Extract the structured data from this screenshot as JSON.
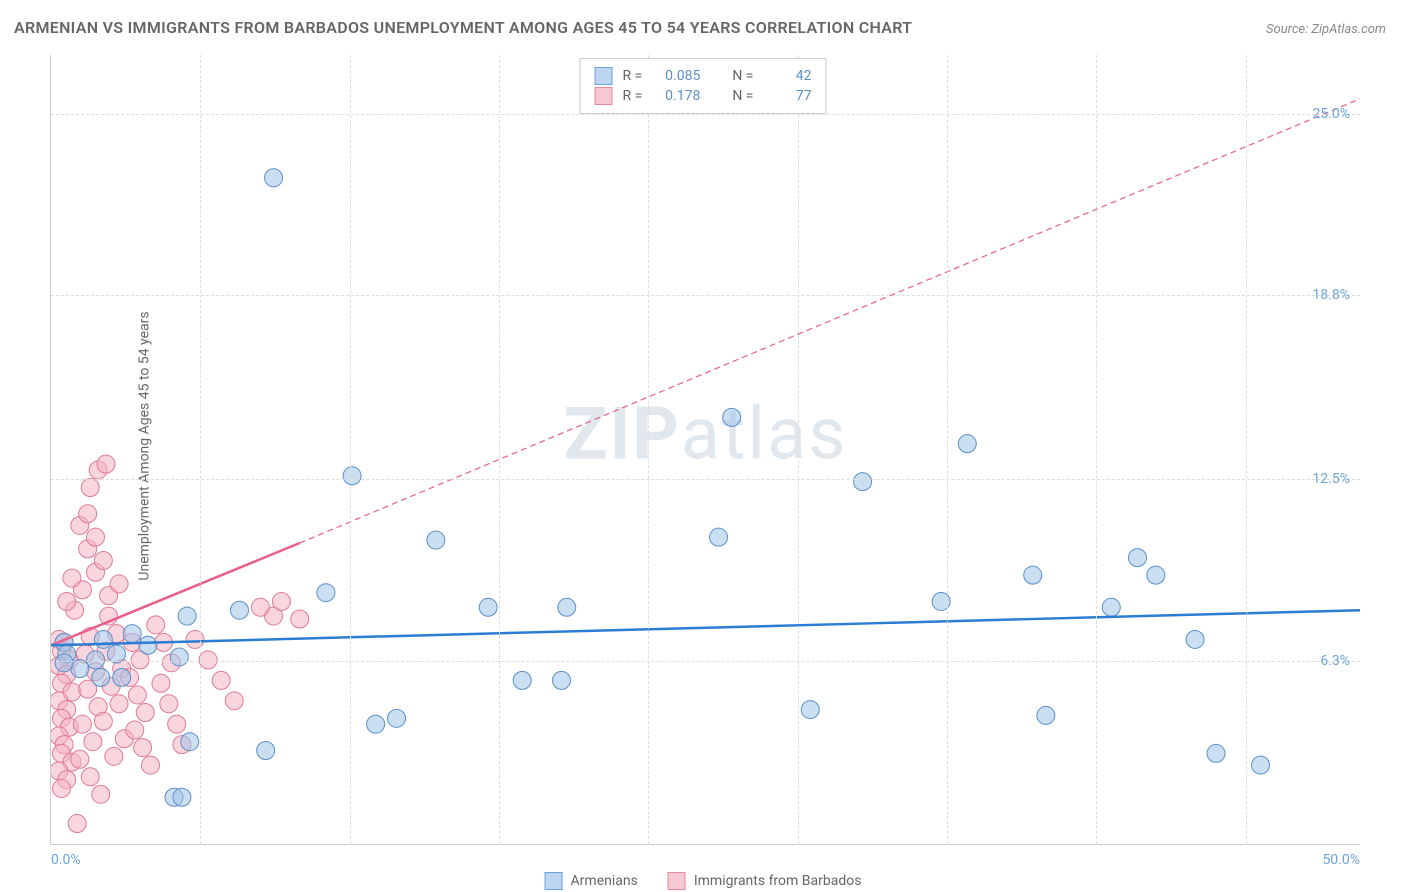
{
  "title": "ARMENIAN VS IMMIGRANTS FROM BARBADOS UNEMPLOYMENT AMONG AGES 45 TO 54 YEARS CORRELATION CHART",
  "source": "Source: ZipAtlas.com",
  "y_axis_label": "Unemployment Among Ages 45 to 54 years",
  "watermark_bold": "ZIP",
  "watermark_rest": "atlas",
  "chart": {
    "type": "scatter",
    "xlim": [
      0,
      50
    ],
    "ylim": [
      0,
      27
    ],
    "x_ticks": [
      0,
      50
    ],
    "x_tick_labels": [
      "0.0%",
      "50.0%"
    ],
    "y_ticks": [
      6.3,
      12.5,
      18.8,
      25.0
    ],
    "y_tick_labels": [
      "6.3%",
      "12.5%",
      "18.8%",
      "25.0%"
    ],
    "v_grid_positions": [
      5.7,
      11.4,
      17.1,
      22.8,
      28.5,
      34.2,
      39.9,
      45.6
    ],
    "h_grid_positions": [
      6.3,
      12.5,
      18.8,
      25.0
    ],
    "background_color": "#ffffff",
    "grid_color": "#dddddd",
    "marker_radius": 9,
    "marker_opacity": 0.55,
    "colors": {
      "blue_fill": "#9ec5e8",
      "blue_stroke": "#5a8fc9",
      "pink_fill": "#f4b2c2",
      "pink_stroke": "#e07a95",
      "blue_line": "#2b7cd3",
      "pink_line": "#e85f88"
    },
    "correlation_legend": [
      {
        "swatch": "blue",
        "r_label": "R =",
        "r_value": "0.085",
        "n_label": "N =",
        "n_value": "42"
      },
      {
        "swatch": "pink",
        "r_label": "R =",
        "r_value": "0.178",
        "n_label": "N =",
        "n_value": "77"
      }
    ],
    "series_legend": [
      {
        "swatch": "blue",
        "label": "Armenians"
      },
      {
        "swatch": "pink",
        "label": "Immigrants from Barbados"
      }
    ],
    "regression_lines": {
      "blue": {
        "x1": 0,
        "y1": 6.8,
        "x2": 50,
        "y2": 8.0,
        "width": 2.5,
        "dash": "none"
      },
      "pink_solid": {
        "x1": 0,
        "y1": 6.8,
        "x2": 9.5,
        "y2": 10.3,
        "width": 2.5,
        "dash": "none"
      },
      "pink_dashed": {
        "x1": 9.5,
        "y1": 10.3,
        "x2": 50,
        "y2": 25.5,
        "width": 1.2,
        "dash": "6 4"
      }
    },
    "series": {
      "armenians": [
        [
          8.5,
          22.8
        ],
        [
          26,
          14.6
        ],
        [
          35,
          13.7
        ],
        [
          31,
          12.4
        ],
        [
          11.5,
          12.6
        ],
        [
          14.7,
          10.4
        ],
        [
          25.5,
          10.5
        ],
        [
          10.5,
          8.6
        ],
        [
          16.7,
          8.1
        ],
        [
          19.7,
          8.1
        ],
        [
          34,
          8.3
        ],
        [
          41.5,
          9.8
        ],
        [
          37.5,
          9.2
        ],
        [
          42.2,
          9.2
        ],
        [
          40.5,
          8.1
        ],
        [
          43.7,
          7.0
        ],
        [
          38,
          4.4
        ],
        [
          44.5,
          3.1
        ],
        [
          46.2,
          2.7
        ],
        [
          29,
          4.6
        ],
        [
          18,
          5.6
        ],
        [
          19.5,
          5.6
        ],
        [
          13.2,
          4.3
        ],
        [
          12.4,
          4.1
        ],
        [
          8.2,
          3.2
        ],
        [
          4.7,
          1.6
        ],
        [
          7.2,
          8.0
        ],
        [
          5.0,
          1.6
        ],
        [
          3.7,
          6.8
        ],
        [
          4.9,
          6.4
        ],
        [
          5.3,
          3.5
        ],
        [
          2.0,
          7.0
        ],
        [
          3.1,
          7.2
        ],
        [
          0.5,
          6.9
        ],
        [
          1.9,
          5.7
        ],
        [
          1.1,
          6.0
        ],
        [
          2.7,
          5.7
        ],
        [
          5.2,
          7.8
        ],
        [
          2.5,
          6.5
        ],
        [
          0.6,
          6.5
        ],
        [
          1.7,
          6.3
        ],
        [
          0.5,
          6.2
        ]
      ],
      "barbados": [
        [
          0.3,
          7.0
        ],
        [
          0.5,
          6.9
        ],
        [
          0.4,
          6.6
        ],
        [
          0.7,
          6.3
        ],
        [
          0.3,
          6.1
        ],
        [
          0.6,
          5.8
        ],
        [
          0.4,
          5.5
        ],
        [
          0.8,
          5.2
        ],
        [
          0.3,
          4.9
        ],
        [
          0.6,
          4.6
        ],
        [
          0.4,
          4.3
        ],
        [
          0.7,
          4.0
        ],
        [
          0.3,
          3.7
        ],
        [
          0.5,
          3.4
        ],
        [
          0.4,
          3.1
        ],
        [
          0.8,
          2.8
        ],
        [
          0.3,
          2.5
        ],
        [
          0.6,
          2.2
        ],
        [
          0.4,
          1.9
        ],
        [
          1.0,
          0.7
        ],
        [
          1.5,
          7.1
        ],
        [
          1.3,
          6.5
        ],
        [
          1.7,
          5.9
        ],
        [
          1.4,
          5.3
        ],
        [
          1.8,
          4.7
        ],
        [
          1.2,
          4.1
        ],
        [
          1.6,
          3.5
        ],
        [
          1.1,
          2.9
        ],
        [
          1.5,
          2.3
        ],
        [
          1.9,
          1.7
        ],
        [
          2.2,
          7.8
        ],
        [
          2.5,
          7.2
        ],
        [
          2.1,
          6.6
        ],
        [
          2.7,
          6.0
        ],
        [
          2.3,
          5.4
        ],
        [
          2.6,
          4.8
        ],
        [
          2.0,
          4.2
        ],
        [
          2.8,
          3.6
        ],
        [
          2.4,
          3.0
        ],
        [
          2.2,
          8.5
        ],
        [
          2.6,
          8.9
        ],
        [
          1.7,
          9.3
        ],
        [
          2.0,
          9.7
        ],
        [
          1.4,
          10.1
        ],
        [
          1.7,
          10.5
        ],
        [
          1.1,
          10.9
        ],
        [
          1.4,
          11.3
        ],
        [
          1.8,
          12.8
        ],
        [
          2.1,
          13.0
        ],
        [
          1.5,
          12.2
        ],
        [
          3.1,
          6.9
        ],
        [
          3.4,
          6.3
        ],
        [
          3.0,
          5.7
        ],
        [
          3.3,
          5.1
        ],
        [
          3.6,
          4.5
        ],
        [
          3.2,
          3.9
        ],
        [
          3.5,
          3.3
        ],
        [
          3.8,
          2.7
        ],
        [
          4.0,
          7.5
        ],
        [
          4.3,
          6.9
        ],
        [
          4.6,
          6.2
        ],
        [
          4.2,
          5.5
        ],
        [
          4.5,
          4.8
        ],
        [
          4.8,
          4.1
        ],
        [
          5.0,
          3.4
        ],
        [
          5.5,
          7.0
        ],
        [
          6.0,
          6.3
        ],
        [
          6.5,
          5.6
        ],
        [
          7.0,
          4.9
        ],
        [
          8.5,
          7.8
        ],
        [
          8.0,
          8.1
        ],
        [
          9.5,
          7.7
        ],
        [
          8.8,
          8.3
        ],
        [
          0.9,
          8.0
        ],
        [
          0.6,
          8.3
        ],
        [
          1.2,
          8.7
        ],
        [
          0.8,
          9.1
        ]
      ]
    }
  }
}
